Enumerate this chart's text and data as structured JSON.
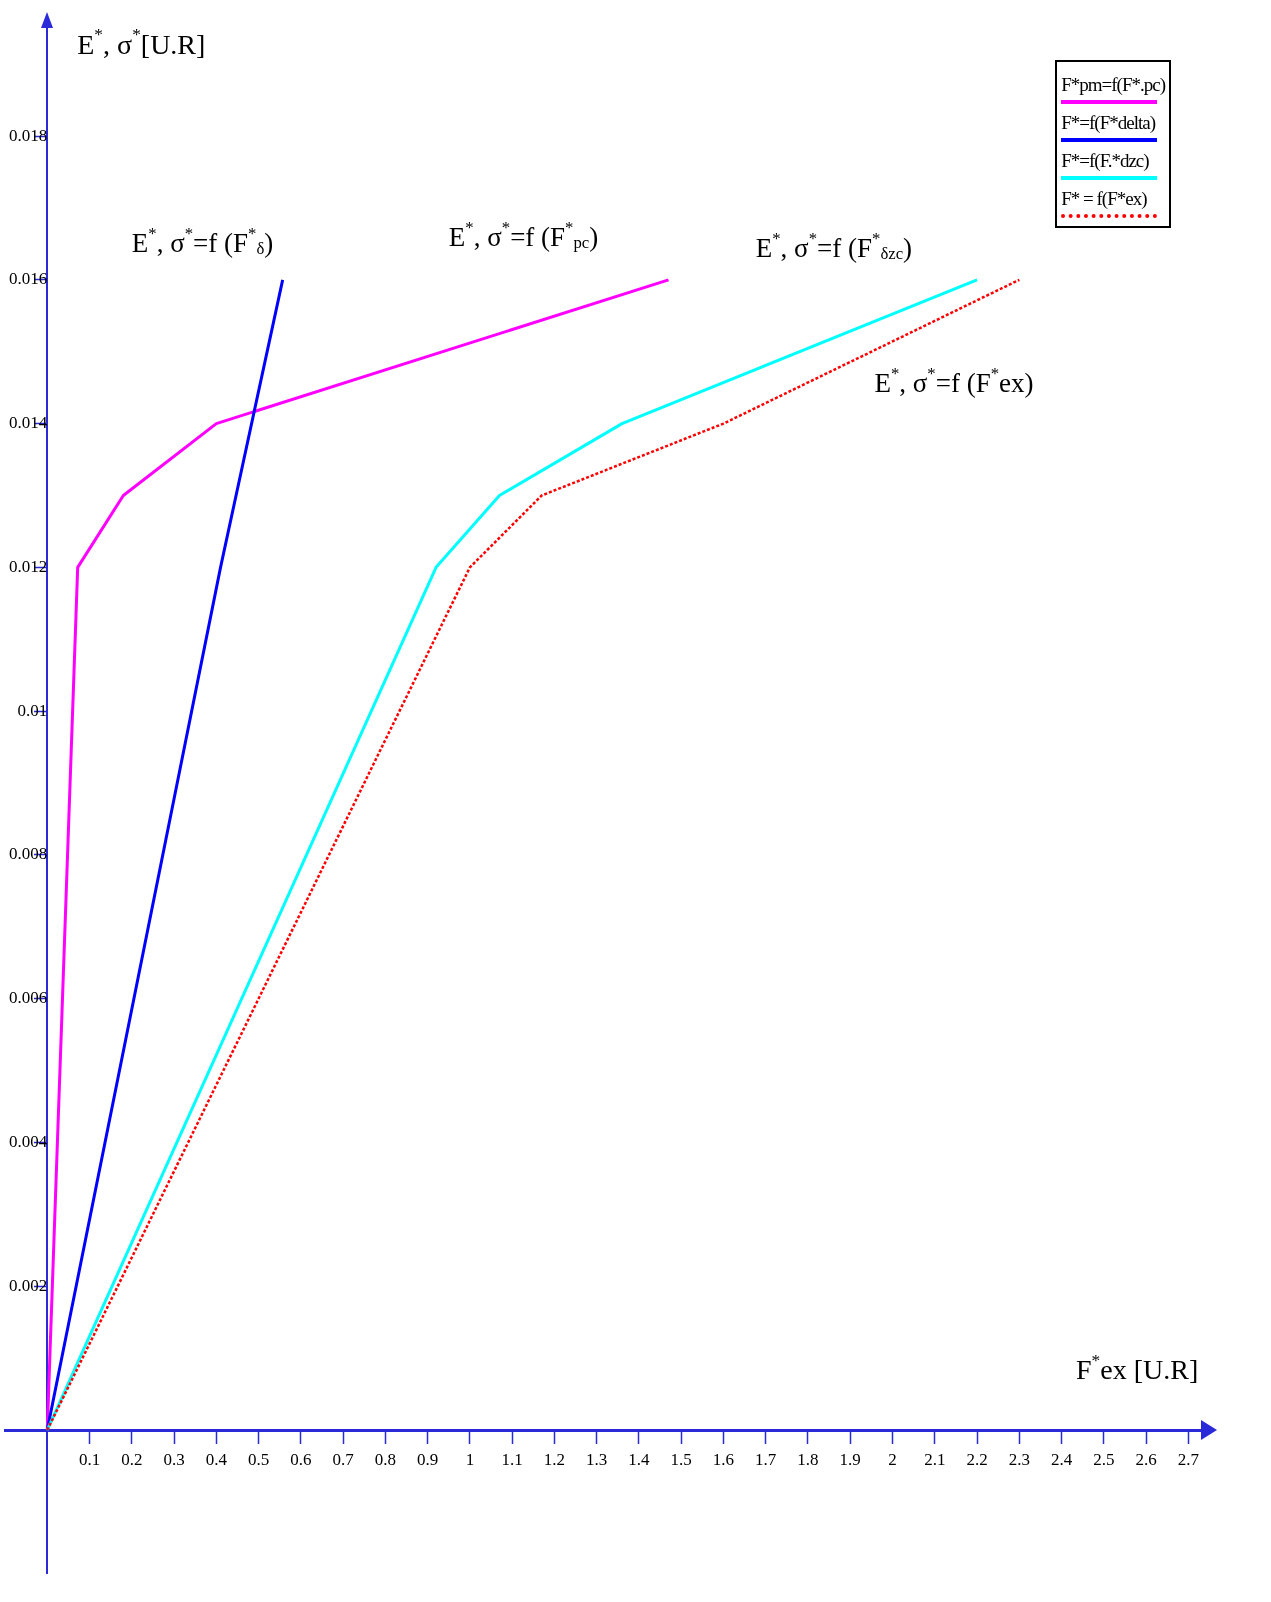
{
  "chart_data": {
    "type": "line",
    "xlabel": "F$^{*}$ex [U.R]",
    "ylabel": "E$^{*}$, σ$^{*}$[U.R]",
    "xlim": [
      -0.1,
      2.73
    ],
    "ylim": [
      -0.002,
      0.0195
    ],
    "xticks": [
      0.1,
      0.2,
      0.3,
      0.4,
      0.5,
      0.6,
      0.7,
      0.8,
      0.9,
      1,
      1.1,
      1.2,
      1.3,
      1.4,
      1.5,
      1.6,
      1.7,
      1.8,
      1.9,
      2,
      2.1,
      2.2,
      2.3,
      2.4,
      2.5,
      2.6,
      2.7
    ],
    "yticks": [
      0.002,
      0.004,
      0.006,
      0.008,
      0.01,
      0.012,
      0.014,
      0.016,
      0.018
    ],
    "grid": false,
    "legend": "top right",
    "marker": "none",
    "series": [
      {
        "name": "F*pm=f(F*.pc)",
        "color": "#ff00ff",
        "line_style": "solid",
        "x": [
          0,
          0.072,
          0.18,
          0.4,
          1.47
        ],
        "values": [
          0,
          0.012,
          0.013,
          0.014,
          0.016
        ]
      },
      {
        "name": "F*=f(F*delta)",
        "color": "#0000ff",
        "line_style": "solid",
        "x": [
          0,
          0.41,
          0.557
        ],
        "values": [
          0,
          0.012,
          0.016
        ]
      },
      {
        "name": "F*=f(F.*dzc)",
        "color": "#00ffff",
        "line_style": "solid",
        "x": [
          0,
          0.92,
          1.07,
          1.36,
          2.2
        ],
        "values": [
          0,
          0.012,
          0.013,
          0.014,
          0.016
        ]
      },
      {
        "name": "F* = f(F*ex)",
        "color": "#ff0000",
        "line_style": "dotted",
        "x": [
          0,
          1,
          1.17,
          1.6,
          2.3
        ],
        "values": [
          0,
          0.012,
          0.013,
          0.014,
          0.016
        ]
      }
    ],
    "annotations": [
      "E$^{*}$, σ$^{*}$=f (F$^{*}$$_{δ}$)",
      "E$^{*}$, σ$^{*}$=f (F$^{*}$$_{pc}$)",
      "E$^{*}$, σ$^{*}$=f (F$^{*}$$_{δzc}$)",
      "E$^{*}$, σ$^{*}$=f (F$^{*}$ex)"
    ]
  }
}
